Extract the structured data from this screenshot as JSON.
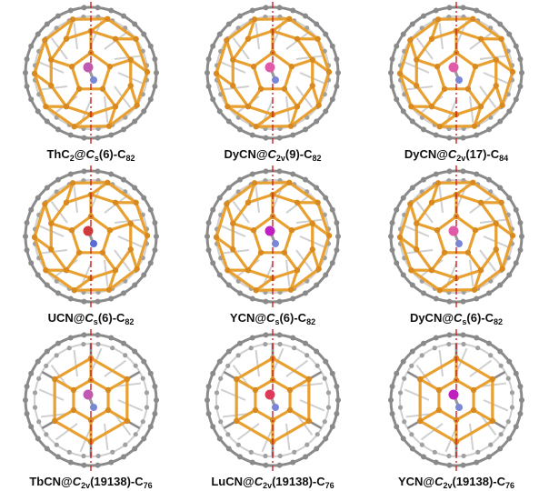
{
  "panels": [
    {
      "cage": "ThC2@Cs(6)-C82",
      "parts": [
        "ThC",
        "2",
        "@",
        "C",
        "s",
        "(6)-C",
        "82"
      ],
      "cluster_colors": [
        "#c05ab0",
        "#7a86d6"
      ],
      "hexagon": false
    },
    {
      "cage": "DyCN@C2v(9)-C82",
      "parts": [
        "DyCN@",
        "",
        "",
        "C",
        "2v",
        "(9)-C",
        "82"
      ],
      "cluster_colors": [
        "#e05aa8",
        "#7a86d6"
      ],
      "hexagon": false
    },
    {
      "cage": "DyCN@C2v(17)-C84",
      "parts": [
        "DyCN@",
        "",
        "",
        "C",
        "2v",
        "(17)-C",
        "84"
      ],
      "cluster_colors": [
        "#e05aa8",
        "#7a86d6"
      ],
      "hexagon": false
    },
    {
      "cage": "UCN@Cs(6)-C82",
      "parts": [
        "UCN@",
        "",
        "",
        "C",
        "s",
        "(6)-C",
        "82"
      ],
      "cluster_colors": [
        "#d03a3a",
        "#5a6ad6"
      ],
      "hexagon": false
    },
    {
      "cage": "YCN@Cs(6)-C82",
      "parts": [
        "YCN@",
        "",
        "",
        "C",
        "s",
        "(6)-C",
        "82"
      ],
      "cluster_colors": [
        "#c020c0",
        "#7a86d6"
      ],
      "hexagon": false
    },
    {
      "cage": "DyCN@Cs(6)-C82",
      "parts": [
        "DyCN@",
        "",
        "",
        "C",
        "s",
        "(6)-C",
        "82"
      ],
      "cluster_colors": [
        "#e05aa8",
        "#7a86d6"
      ],
      "hexagon": false
    },
    {
      "cage": "TbCN@C2v(19138)-C76",
      "parts": [
        "TbCN@",
        "",
        "",
        "C",
        "2v",
        "(19138)-C",
        "76"
      ],
      "cluster_colors": [
        "#c05ab0",
        "#7a86d6"
      ],
      "hexagon": true
    },
    {
      "cage": "LuCN@C2v(19138)-C76",
      "parts": [
        "LuCN@",
        "",
        "",
        "C",
        "2v",
        "(19138)-C",
        "76"
      ],
      "cluster_colors": [
        "#e03a5a",
        "#7a86d6"
      ],
      "hexagon": true
    },
    {
      "cage": "YCN@C2v(19138)-C76",
      "parts": [
        "YCN@",
        "",
        "",
        "C",
        "2v",
        "(19138)-C",
        "76"
      ],
      "cluster_colors": [
        "#c020c0",
        "#7a86d6"
      ],
      "hexagon": true
    }
  ],
  "colors": {
    "cage_gray": "#8a8a8a",
    "cage_light": "#cfcfcf",
    "highlight": "#e8a030",
    "axis": "#d02020"
  }
}
